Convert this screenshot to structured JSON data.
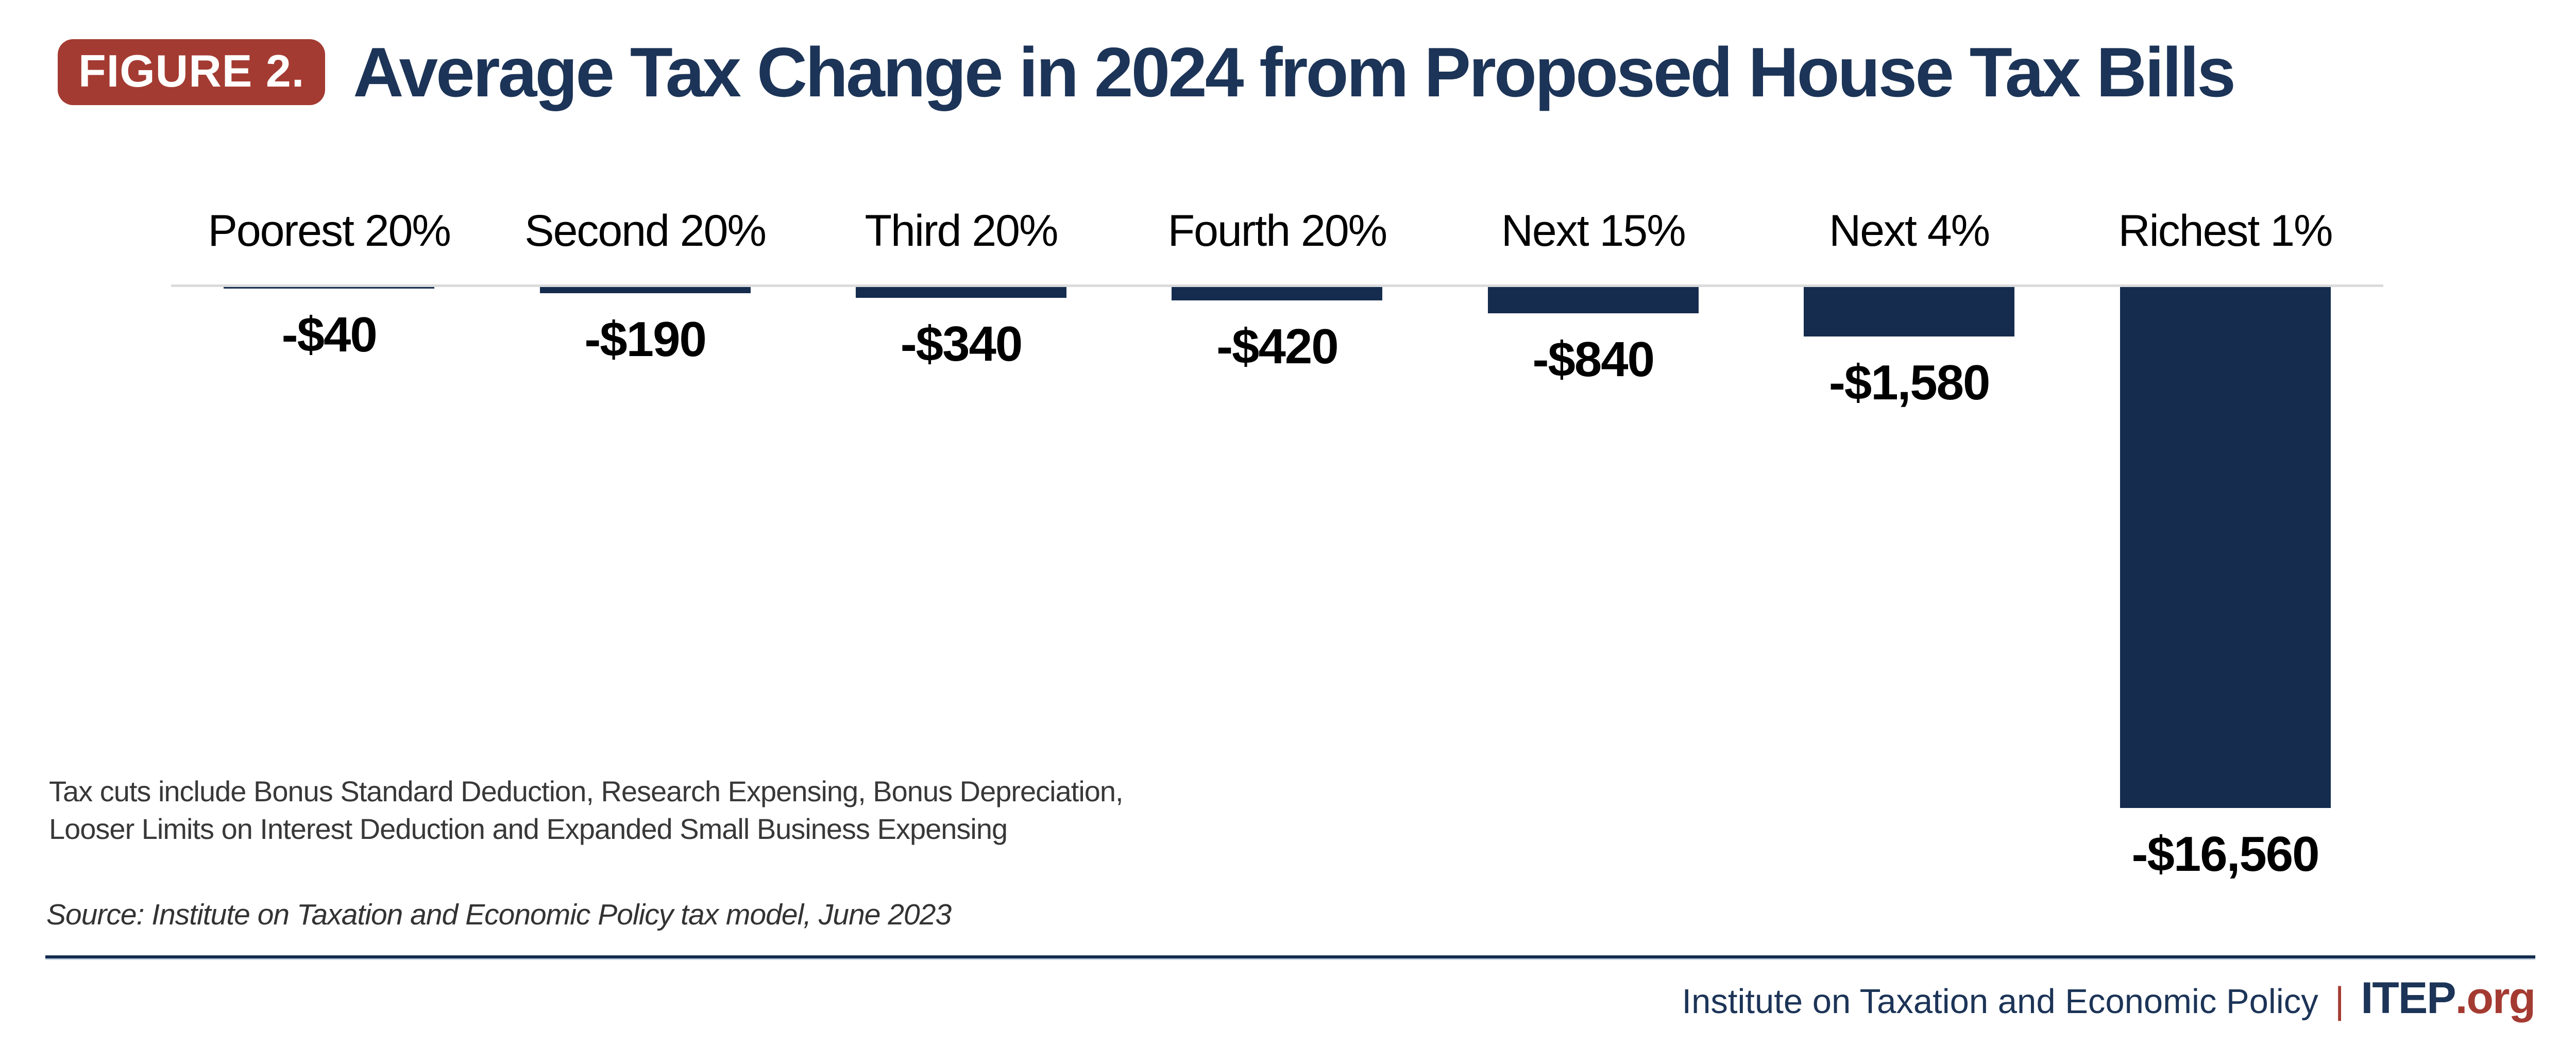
{
  "figure": {
    "badge": "FIGURE 2.",
    "title": "Average Tax Change in 2024 from Proposed House Tax Bills"
  },
  "chart_data": {
    "type": "bar",
    "title": "Average Tax Change in 2024 from Proposed House Tax Bills",
    "categories": [
      "Poorest 20%",
      "Second 20%",
      "Third 20%",
      "Fourth 20%",
      "Next 15%",
      "Next 4%",
      "Richest 1%"
    ],
    "values": [
      -40,
      -190,
      -340,
      -420,
      -840,
      -1580,
      -16560
    ],
    "value_labels": [
      "-$40",
      "-$190",
      "-$340",
      "-$420",
      "-$840",
      "-$1,580",
      "-$16,560"
    ],
    "xlabel": "",
    "ylabel": "",
    "ylim": [
      -17000,
      0
    ],
    "grid": false,
    "legend_position": "none",
    "bar_color": "#152C4E",
    "baseline_color": "#DBDBDB",
    "orientation": "columns-extending-downward-from-zero-baseline"
  },
  "notes": {
    "line1": "Tax cuts include Bonus Standard Deduction, Research Expensing, Bonus Depreciation,",
    "line2": "Looser Limits on Interest Deduction and Expanded Small Business Expensing"
  },
  "source": "Source: Institute on Taxation and Economic Policy tax model, June 2023",
  "footer": {
    "org_name": "Institute on Taxation and Economic Policy",
    "separator": "|",
    "brand": "ITEP",
    "brand_suffix": ".org"
  },
  "colors": {
    "navy_text": "#1C3457",
    "bar_navy": "#152C4E",
    "brand_red": "#A43B32",
    "baseline_gray": "#DBDBDB"
  }
}
